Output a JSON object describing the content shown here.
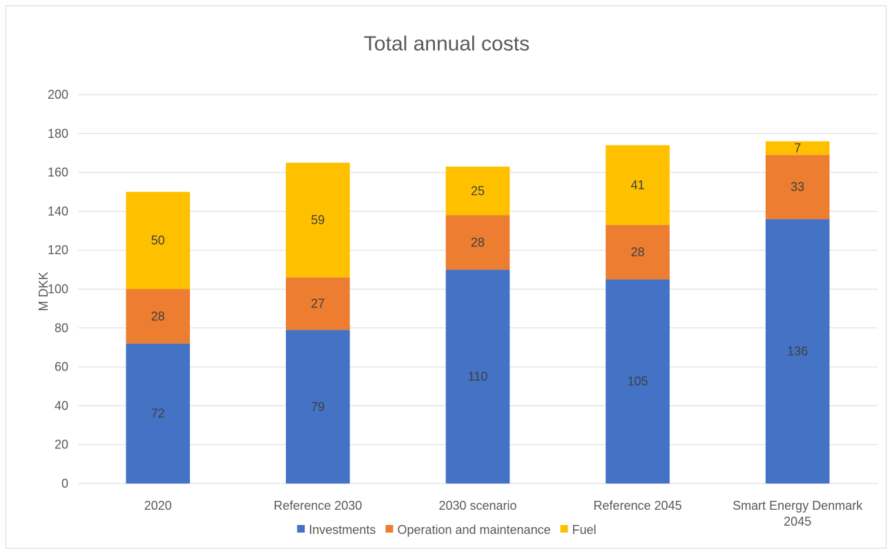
{
  "chart_data": {
    "type": "bar",
    "stacked": true,
    "title": "Total annual costs",
    "xlabel": "",
    "ylabel": "M DKK",
    "ylim": [
      0,
      200
    ],
    "yticks": [
      0,
      20,
      40,
      60,
      80,
      100,
      120,
      140,
      160,
      180,
      200
    ],
    "grid": true,
    "legend_position": "bottom",
    "categories": [
      [
        "2020"
      ],
      [
        "Reference 2030"
      ],
      [
        "2030 scenario"
      ],
      [
        "Reference 2045"
      ],
      [
        "Smart Energy Denmark",
        "2045"
      ]
    ],
    "series": [
      {
        "name": "Investments",
        "color": "#4472C4",
        "label_color": "#404040",
        "values": [
          72,
          79,
          110,
          105,
          136
        ]
      },
      {
        "name": "Operation and maintenance",
        "color": "#ED7D31",
        "label_color": "#404040",
        "values": [
          28,
          27,
          28,
          28,
          33
        ]
      },
      {
        "name": "Fuel",
        "color": "#FFC000",
        "label_color": "#404040",
        "values": [
          50,
          59,
          25,
          41,
          7
        ]
      }
    ]
  }
}
